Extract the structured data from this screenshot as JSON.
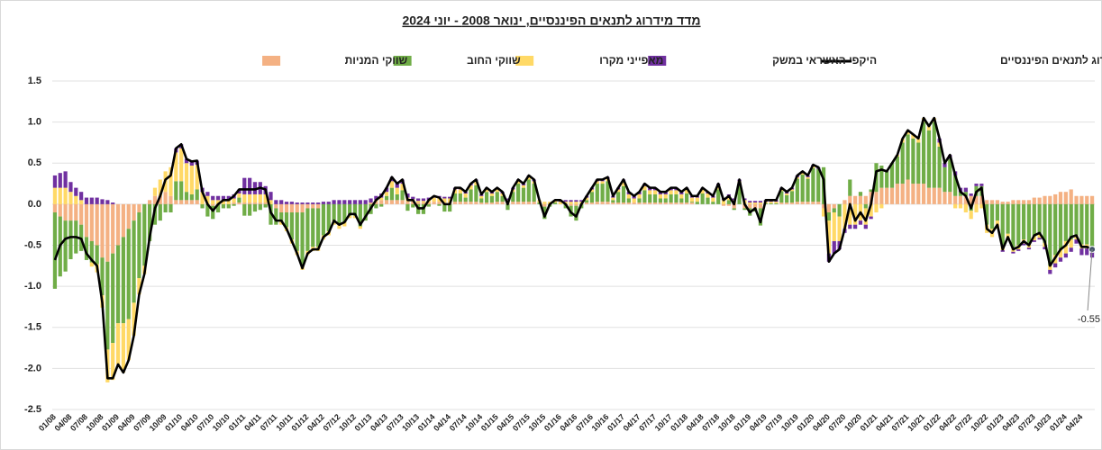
{
  "chart_data": {
    "type": "stacked_bar_line",
    "title": "מדד מידרוג לתנאים הפיננסיים, ינואר 2008 - יוני 2024",
    "categories": [
      "01/08",
      null,
      null,
      "04/08",
      null,
      null,
      "07/08",
      null,
      null,
      "10/08",
      null,
      null,
      "01/09",
      null,
      null,
      "04/09",
      null,
      null,
      "07/09",
      null,
      null,
      "10/09",
      null,
      null,
      "01/10",
      null,
      null,
      "04/10",
      null,
      null,
      "07/10",
      null,
      null,
      "10/10",
      null,
      null,
      "01/11",
      null,
      null,
      "04/11",
      null,
      null,
      "07/11",
      null,
      null,
      "10/11",
      null,
      null,
      "01/12",
      null,
      null,
      "04/12",
      null,
      null,
      "07/12",
      null,
      null,
      "10/12",
      null,
      null,
      "01/13",
      null,
      null,
      "04/13",
      null,
      null,
      "07/13",
      null,
      null,
      "10/13",
      null,
      null,
      "01/14",
      null,
      null,
      "04/14",
      null,
      null,
      "07/14",
      null,
      null,
      "10/14",
      null,
      null,
      "01/15",
      null,
      null,
      "04/15",
      null,
      null,
      "07/15",
      null,
      null,
      "10/15",
      null,
      null,
      "01/16",
      null,
      null,
      "04/16",
      null,
      null,
      "07/16",
      null,
      null,
      "10/16",
      null,
      null,
      "01/17",
      null,
      null,
      "04/17",
      null,
      null,
      "07/17",
      null,
      null,
      "10/17",
      null,
      null,
      "01/18",
      null,
      null,
      "04/18",
      null,
      null,
      "07/18",
      null,
      null,
      "10/18",
      null,
      null,
      "01/19",
      null,
      null,
      "04/19",
      null,
      null,
      "07/19",
      null,
      null,
      "10/19",
      null,
      null,
      "01/20",
      null,
      null,
      "04/20",
      null,
      null,
      "07/20",
      null,
      null,
      "10/20",
      null,
      null,
      "01/21",
      null,
      null,
      "04/21",
      null,
      null,
      "07/21",
      null,
      null,
      "10/21",
      null,
      null,
      "01/22",
      null,
      null,
      "04/22",
      null,
      null,
      "07/22",
      null,
      null,
      "10/22",
      null,
      null,
      "01/23",
      null,
      null,
      "04/23",
      null,
      null,
      "07/23",
      null,
      null,
      "10/23",
      null,
      null,
      "01/24",
      null,
      null,
      "04/24",
      null,
      null
    ],
    "series": [
      {
        "name": "מדד מידרוג לתנאים הפיננסיים",
        "type": "line",
        "color": "#000000",
        "values": [
          -0.68,
          -0.5,
          -0.42,
          -0.4,
          -0.4,
          -0.42,
          -0.6,
          -0.68,
          -0.75,
          -1.2,
          -2.12,
          -2.12,
          -1.95,
          -2.05,
          -1.9,
          -1.6,
          -1.1,
          -0.85,
          -0.4,
          -0.05,
          0.1,
          0.3,
          0.35,
          0.68,
          0.73,
          0.55,
          0.52,
          0.53,
          0.15,
          0.0,
          -0.08,
          0.0,
          0.05,
          0.05,
          0.1,
          0.18,
          0.18,
          0.18,
          0.18,
          0.2,
          0.18,
          -0.1,
          -0.2,
          -0.2,
          -0.3,
          -0.45,
          -0.6,
          -0.78,
          -0.6,
          -0.55,
          -0.55,
          -0.4,
          -0.35,
          -0.2,
          -0.25,
          -0.22,
          -0.12,
          -0.12,
          -0.25,
          -0.15,
          -0.05,
          0.05,
          0.1,
          0.2,
          0.33,
          0.25,
          0.3,
          0.05,
          0.05,
          -0.05,
          -0.05,
          0.05,
          0.1,
          0.08,
          0.0,
          0.0,
          0.2,
          0.2,
          0.15,
          0.25,
          0.3,
          0.12,
          0.2,
          0.15,
          0.2,
          0.15,
          0.0,
          0.2,
          0.3,
          0.25,
          0.35,
          0.3,
          0.05,
          -0.15,
          0.0,
          0.05,
          0.05,
          0.0,
          -0.1,
          -0.15,
          0.0,
          0.1,
          0.2,
          0.3,
          0.3,
          0.33,
          0.1,
          0.2,
          0.3,
          0.15,
          0.1,
          0.15,
          0.25,
          0.2,
          0.2,
          0.15,
          0.15,
          0.2,
          0.2,
          0.15,
          0.2,
          0.1,
          0.1,
          0.2,
          0.15,
          0.1,
          0.25,
          0.05,
          0.1,
          0.0,
          0.3,
          0.0,
          -0.1,
          -0.05,
          -0.22,
          0.05,
          0.05,
          0.05,
          0.2,
          0.15,
          0.2,
          0.35,
          0.4,
          0.35,
          0.48,
          0.45,
          0.3,
          -0.7,
          -0.6,
          -0.55,
          -0.3,
          0.0,
          -0.2,
          -0.1,
          -0.2,
          0.0,
          0.4,
          0.42,
          0.4,
          0.5,
          0.6,
          0.8,
          0.9,
          0.85,
          0.8,
          1.05,
          0.95,
          1.05,
          0.8,
          0.5,
          0.6,
          0.35,
          0.15,
          0.1,
          -0.05,
          0.15,
          0.2,
          -0.3,
          -0.35,
          -0.25,
          -0.55,
          -0.4,
          -0.55,
          -0.52,
          -0.45,
          -0.5,
          -0.38,
          -0.35,
          -0.45,
          -0.75,
          -0.65,
          -0.55,
          -0.5,
          -0.4,
          -0.38,
          -0.52,
          -0.52,
          -0.55
        ]
      },
      {
        "name": "היקפי האשראי במשק",
        "type": "bar",
        "color": "#7030a0",
        "values": [
          0.15,
          0.18,
          0.2,
          0.12,
          0.1,
          0.1,
          0.08,
          0.08,
          0.08,
          0.06,
          0.05,
          0.02,
          0,
          0,
          0,
          0,
          0,
          0,
          0,
          0,
          0,
          0,
          0,
          0.05,
          0.05,
          0.05,
          0.05,
          0.05,
          0.05,
          0.05,
          0.05,
          0.05,
          0.05,
          0.05,
          0.05,
          0.05,
          0.2,
          0.2,
          0.15,
          0.15,
          0.1,
          0.1,
          0.05,
          0.05,
          0.03,
          0.03,
          0.02,
          0.02,
          0.02,
          0.02,
          0.02,
          0.03,
          0.03,
          0.05,
          0.05,
          0.05,
          0.05,
          0.05,
          0.05,
          0.05,
          0.05,
          0.05,
          0.05,
          0.05,
          0.05,
          0.05,
          0.05,
          0.05,
          0.03,
          0.03,
          0.03,
          0.03,
          0.02,
          0.02,
          0.02,
          0.02,
          0.02,
          0.02,
          0.02,
          0.02,
          0.02,
          0.02,
          0.02,
          0.02,
          0.02,
          0.02,
          0.02,
          0.02,
          0.02,
          0.02,
          0.02,
          0.02,
          0,
          0,
          0,
          0,
          0.02,
          0.02,
          0.02,
          0.02,
          0.02,
          0.02,
          0.02,
          0.02,
          0.02,
          0.02,
          0.02,
          0.02,
          0.03,
          0.03,
          0.03,
          0.03,
          0.03,
          0.03,
          0.03,
          0.03,
          0.03,
          0.03,
          0.03,
          0.03,
          0.02,
          0.02,
          0.02,
          0.02,
          0.02,
          0.02,
          0.02,
          0.02,
          0.02,
          0.02,
          0.02,
          0.02,
          0.02,
          0.02,
          0.02,
          0.02,
          0.02,
          0.02,
          0.02,
          0.02,
          0.02,
          0.02,
          0.02,
          0.02,
          0.02,
          0.02,
          0,
          -0.1,
          -0.15,
          -0.1,
          -0.05,
          -0.05,
          -0.05,
          -0.05,
          -0.05,
          -0.03,
          0,
          0,
          0,
          0,
          0,
          0,
          0,
          0,
          0,
          0,
          0,
          0,
          0.05,
          0.05,
          0.05,
          0.05,
          0.05,
          0.05,
          0.03,
          0.03,
          0.03,
          0,
          0,
          0,
          -0.02,
          -0.02,
          -0.02,
          -0.02,
          -0.02,
          -0.02,
          -0.02,
          -0.02,
          -0.03,
          -0.05,
          -0.05,
          -0.05,
          -0.05,
          -0.05,
          -0.05,
          -0.08,
          -0.08,
          -0.08
        ]
      },
      {
        "name": "מאפייני מקרו",
        "type": "bar",
        "color": "#ffd966",
        "values": [
          0.2,
          0.2,
          0.2,
          0.15,
          0.1,
          0.05,
          0.0,
          -0.05,
          -0.1,
          -0.15,
          -0.4,
          -0.45,
          -0.5,
          -0.6,
          -0.5,
          -0.4,
          -0.2,
          -0.1,
          0.0,
          0.1,
          0.2,
          0.25,
          0.35,
          0.35,
          0.4,
          0.35,
          0.35,
          0.3,
          0.15,
          0.1,
          0.05,
          0.05,
          0.05,
          0.05,
          0.05,
          0.05,
          0.1,
          0.1,
          0.1,
          0.1,
          0.1,
          0.05,
          0,
          -0.05,
          -0.05,
          -0.05,
          -0.05,
          -0.05,
          -0.05,
          -0.05,
          -0.05,
          -0.05,
          -0.05,
          -0.05,
          -0.05,
          -0.05,
          -0.03,
          -0.03,
          -0.03,
          0,
          0,
          0.02,
          0.03,
          0.05,
          0.08,
          0.08,
          0.08,
          0.05,
          0.03,
          0.02,
          0.02,
          0.03,
          0.05,
          0.05,
          0.05,
          0.05,
          0.05,
          0.05,
          0.05,
          0.05,
          0.05,
          0.03,
          0.03,
          0.03,
          0.03,
          0.03,
          0.03,
          0.03,
          0.03,
          0.03,
          0.03,
          0.03,
          0.03,
          0.03,
          0.03,
          0.03,
          0.03,
          0.03,
          0.03,
          0.03,
          0.03,
          0.03,
          0.03,
          0.03,
          0.03,
          0.03,
          0.03,
          0.03,
          0.05,
          0.05,
          0.05,
          0.05,
          0.05,
          0.05,
          0.05,
          0.05,
          0.05,
          0.05,
          0.05,
          0.05,
          0.05,
          0.05,
          0.05,
          0.05,
          0.05,
          0.05,
          0.05,
          0.05,
          0.05,
          0.05,
          0.05,
          0.05,
          0.02,
          0.02,
          0.02,
          0.02,
          0.02,
          0.02,
          0.02,
          0.02,
          0.02,
          0.02,
          0.02,
          0.02,
          0.02,
          0,
          -0.1,
          -0.4,
          -0.35,
          -0.3,
          -0.3,
          -0.25,
          -0.25,
          -0.2,
          -0.2,
          -0.15,
          -0.1,
          -0.05,
          0,
          0,
          0.02,
          0.05,
          0.05,
          0.05,
          0.05,
          0.05,
          0.05,
          0.05,
          0.05,
          0,
          0,
          -0.05,
          -0.05,
          -0.1,
          -0.1,
          -0.1,
          -0.05,
          -0.1,
          -0.1,
          -0.1,
          -0.05,
          -0.05,
          -0.05,
          -0.05,
          -0.05,
          -0.05,
          -0.05,
          -0.05,
          -0.05,
          -0.05,
          -0.1,
          -0.1,
          -0.15,
          -0.1,
          -0.05,
          -0.05,
          -0.05,
          -0.05
        ]
      },
      {
        "name": "שווקי החוב",
        "type": "bar",
        "color": "#70ad47",
        "values": [
          -0.93,
          -0.73,
          -0.62,
          -0.47,
          -0.4,
          -0.32,
          -0.28,
          -0.26,
          -0.23,
          -0.46,
          -1.07,
          -1.09,
          -0.95,
          -1.05,
          -1.1,
          -1.0,
          -0.8,
          -0.75,
          -0.45,
          -0.25,
          -0.2,
          -0.1,
          -0.1,
          0.23,
          0.23,
          0.1,
          0.07,
          0.13,
          -0.05,
          -0.15,
          -0.16,
          -0.1,
          -0.05,
          -0.05,
          -0.02,
          0.06,
          -0.14,
          -0.14,
          -0.09,
          -0.07,
          -0.04,
          -0.25,
          -0.2,
          -0.1,
          -0.18,
          -0.33,
          -0.47,
          -0.65,
          -0.52,
          -0.47,
          -0.47,
          -0.38,
          -0.33,
          -0.2,
          -0.25,
          -0.22,
          -0.14,
          -0.14,
          -0.27,
          -0.2,
          -0.12,
          -0.05,
          -0.03,
          0.05,
          0.15,
          0.07,
          0.12,
          -0.08,
          -0.04,
          -0.12,
          -0.12,
          -0.03,
          0,
          -0.02,
          -0.09,
          -0.09,
          0.1,
          0.1,
          0.05,
          0.15,
          0.2,
          0.05,
          0.13,
          0.08,
          0.12,
          0.07,
          -0.07,
          0.12,
          0.22,
          0.17,
          0.27,
          0.22,
          0.02,
          -0.15,
          -0.03,
          0.02,
          0,
          -0.05,
          -0.13,
          -0.18,
          -0.05,
          0.03,
          0.13,
          0.22,
          0.22,
          0.25,
          0.03,
          0.13,
          0.2,
          0.05,
          0,
          0.05,
          0.15,
          0.1,
          0.1,
          0.05,
          0.05,
          0.1,
          0.1,
          0.05,
          0.11,
          0.01,
          0.03,
          0.13,
          0.08,
          0.03,
          0.18,
          0,
          0.05,
          -0.02,
          0.23,
          -0.02,
          -0.09,
          -0.04,
          -0.21,
          0.01,
          0.01,
          0.01,
          0.14,
          0.09,
          0.14,
          0.28,
          0.33,
          0.28,
          0.41,
          0.4,
          0.45,
          -0.1,
          -0.05,
          -0.15,
          0,
          0.2,
          0,
          0.05,
          -0.05,
          0.03,
          0.35,
          0.27,
          0.2,
          0.3,
          0.33,
          0.5,
          0.55,
          0.55,
          0.5,
          0.75,
          0.7,
          0.8,
          0.5,
          0.3,
          0.4,
          0.25,
          0.05,
          0.05,
          -0.08,
          0.12,
          0.12,
          -0.25,
          -0.3,
          -0.2,
          -0.51,
          -0.36,
          -0.53,
          -0.5,
          -0.43,
          -0.48,
          -0.39,
          -0.36,
          -0.47,
          -0.75,
          -0.62,
          -0.55,
          -0.45,
          -0.43,
          -0.38,
          -0.49,
          -0.49,
          -0.52
        ]
      },
      {
        "name": "שווקי המניות",
        "type": "bar",
        "color": "#f4b183",
        "values": [
          -0.1,
          -0.15,
          -0.2,
          -0.2,
          -0.2,
          -0.25,
          -0.4,
          -0.45,
          -0.5,
          -0.65,
          -0.7,
          -0.6,
          -0.5,
          -0.4,
          -0.3,
          -0.2,
          -0.1,
          0.0,
          0.05,
          0.1,
          0.1,
          0.15,
          0.1,
          0.05,
          0.05,
          0.05,
          0.05,
          0.05,
          0,
          0,
          -0.02,
          0,
          0,
          0,
          0.02,
          0.02,
          0.02,
          0.02,
          0.02,
          0.02,
          0.02,
          0,
          -0.05,
          -0.1,
          -0.1,
          -0.1,
          -0.1,
          -0.1,
          -0.05,
          -0.05,
          -0.05,
          0,
          0,
          0,
          0,
          0,
          0,
          0,
          0,
          0,
          0.02,
          0.03,
          0.05,
          0.05,
          0.05,
          0.05,
          0.05,
          0.03,
          0.03,
          0.02,
          0.02,
          0.02,
          0.03,
          0.03,
          0.02,
          0.02,
          0.03,
          0.03,
          0.03,
          0.03,
          0.03,
          0.02,
          0.02,
          0.02,
          0.03,
          0.03,
          0.02,
          0.03,
          0.03,
          0.03,
          0.03,
          0.03,
          0,
          -0.03,
          0,
          0,
          0,
          0,
          -0.02,
          -0.02,
          0,
          0.02,
          0.02,
          0.03,
          0.03,
          0.03,
          0.02,
          0.02,
          0.02,
          0.02,
          0.02,
          0.02,
          0.02,
          0.02,
          0.02,
          0.02,
          0.02,
          0.02,
          0.02,
          0.02,
          0.02,
          0.02,
          0,
          0,
          0,
          0,
          0,
          -0.02,
          -0.02,
          -0.05,
          0,
          -0.05,
          -0.05,
          -0.05,
          -0.05,
          0,
          0,
          0,
          0.02,
          0.02,
          0.02,
          0.03,
          0.03,
          0.03,
          0.03,
          0.03,
          -0.05,
          -0.1,
          -0.05,
          0,
          0.05,
          0.1,
          0.1,
          0.1,
          0.1,
          0.15,
          0.15,
          0.2,
          0.2,
          0.2,
          0.25,
          0.25,
          0.3,
          0.25,
          0.25,
          0.25,
          0.2,
          0.2,
          0.2,
          0.15,
          0.15,
          0.1,
          0.1,
          0.1,
          0.1,
          0.1,
          0.1,
          0.05,
          0.05,
          0.05,
          0.03,
          0.03,
          0.05,
          0.05,
          0.05,
          0.05,
          0.08,
          0.08,
          0.1,
          0.1,
          0.12,
          0.15,
          0.15,
          0.18,
          0.1,
          0.1,
          0.1,
          0.1
        ]
      }
    ],
    "ylim": [
      -2.5,
      1.5
    ],
    "yticks": [
      1.5,
      {
        "value": 1.0,
        "label": "1.0"
      },
      0.5,
      {
        "value": 0,
        "label": "0.0"
      },
      -0.5,
      {
        "value": -1.0,
        "label": "-1.0"
      },
      -1.5,
      {
        "value": -2.0,
        "label": "-2.0"
      },
      -2.5
    ],
    "grid": true
  }
}
